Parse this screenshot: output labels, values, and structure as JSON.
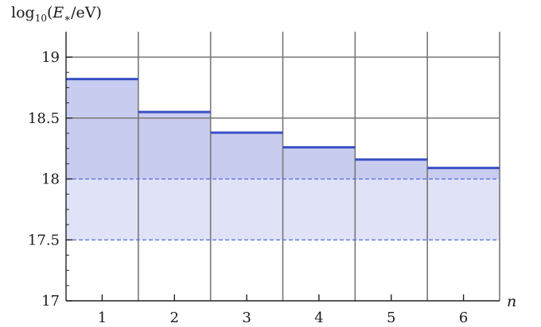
{
  "chart_data": {
    "type": "bar",
    "title": "",
    "xlabel": "n",
    "ylabel": "log10(E*/eV)",
    "ylabel_parts": {
      "func": "log",
      "sub": "10",
      "open": "(",
      "sym": "E",
      "star": "∗",
      "rest": "/eV)"
    },
    "categories": [
      "1",
      "2",
      "3",
      "4",
      "5",
      "6"
    ],
    "values": [
      18.82,
      18.55,
      18.38,
      18.26,
      18.16,
      18.09
    ],
    "ylim": [
      17,
      19.2
    ],
    "yticks": [
      17,
      17.5,
      18,
      18.5,
      19
    ],
    "ytick_labels": [
      "17",
      "17.5",
      "18",
      "18.5",
      "19"
    ],
    "reference_band": [
      17.5,
      18.0
    ],
    "grid": true,
    "colors": {
      "fill_above": "#c8ccef",
      "fill_band": "#e0e2f7",
      "bar_top": "#3a4fc4",
      "reference_line": "#5566dd",
      "grid": "#777777",
      "axis": "#222222"
    }
  }
}
